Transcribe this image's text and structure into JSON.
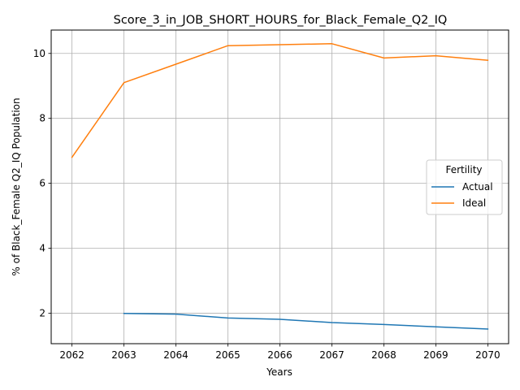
{
  "chart_data": {
    "type": "line",
    "title": "Score_3_in_JOB_SHORT_HOURS_for_Black_Female_Q2_IQ",
    "xlabel": "Years",
    "ylabel": "% of Black_Female Q2_IQ Population",
    "x": [
      2062,
      2063,
      2064,
      2065,
      2066,
      2067,
      2068,
      2069,
      2070
    ],
    "x_ticks": [
      "2062",
      "2063",
      "2064",
      "2065",
      "2066",
      "2067",
      "2068",
      "2069",
      "2070"
    ],
    "y_ticks": [
      "2",
      "4",
      "6",
      "8",
      "10"
    ],
    "xlim": [
      2061.6,
      2070.4
    ],
    "ylim": [
      1.06,
      10.72
    ],
    "grid": true,
    "legend": {
      "title": "Fertility",
      "placement": "right"
    },
    "series": [
      {
        "name": "Actual",
        "color": "#1f77b4",
        "values": [
          null,
          1.99,
          1.97,
          1.85,
          1.81,
          1.71,
          1.65,
          1.58,
          1.51
        ]
      },
      {
        "name": "Ideal",
        "color": "#ff7f0e",
        "values": [
          6.8,
          9.1,
          9.67,
          10.24,
          10.27,
          10.3,
          9.86,
          9.93,
          9.79
        ]
      }
    ]
  }
}
